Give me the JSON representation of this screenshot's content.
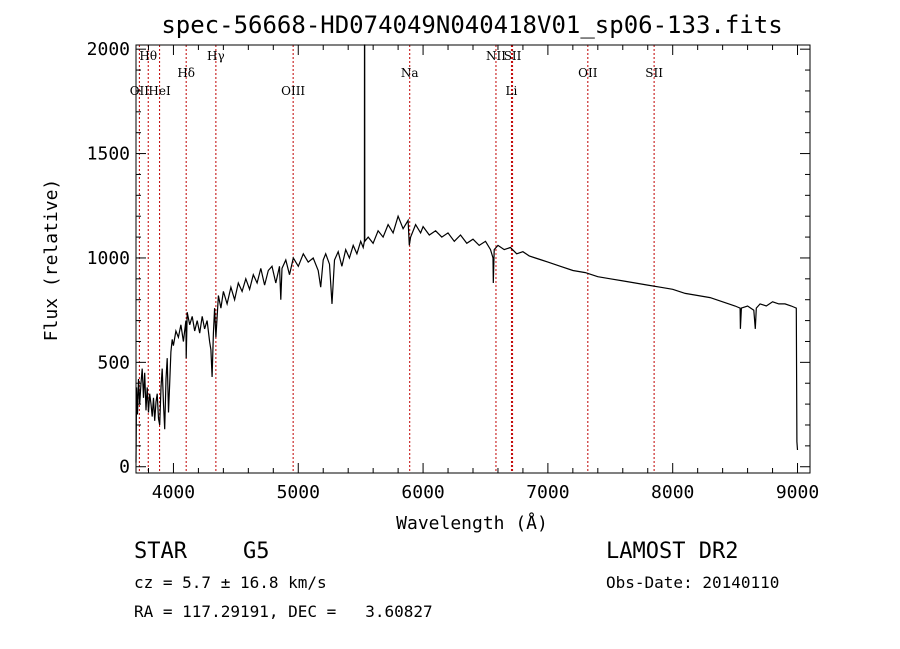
{
  "chart_data": {
    "type": "line",
    "title": "spec-56668-HD074049N040418V01_sp06-133.fits",
    "xlabel": "Wavelength (Å)",
    "ylabel": "Flux (relative)",
    "xlim": [
      3700,
      9100
    ],
    "ylim": [
      -30,
      2020
    ],
    "xticks": [
      4000,
      5000,
      6000,
      7000,
      8000,
      9000
    ],
    "yticks": [
      0,
      500,
      1000,
      1500,
      2000
    ],
    "xtick_labels": [
      "4000",
      "5000",
      "6000",
      "7000",
      "8000",
      "9000"
    ],
    "ytick_labels": [
      "0",
      "500",
      "1000",
      "1500",
      "2000"
    ],
    "grid": false,
    "series": [
      {
        "color": "#000000",
        "points": [
          [
            3700,
            20
          ],
          [
            3705,
            380
          ],
          [
            3712,
            250
          ],
          [
            3720,
            420
          ],
          [
            3730,
            300
          ],
          [
            3740,
            400
          ],
          [
            3750,
            470
          ],
          [
            3760,
            330
          ],
          [
            3770,
            450
          ],
          [
            3780,
            270
          ],
          [
            3790,
            380
          ],
          [
            3800,
            260
          ],
          [
            3810,
            350
          ],
          [
            3820,
            300
          ],
          [
            3830,
            240
          ],
          [
            3840,
            330
          ],
          [
            3850,
            220
          ],
          [
            3860,
            310
          ],
          [
            3870,
            350
          ],
          [
            3880,
            230
          ],
          [
            3890,
            200
          ],
          [
            3900,
            380
          ],
          [
            3910,
            470
          ],
          [
            3920,
            300
          ],
          [
            3930,
            180
          ],
          [
            3940,
            420
          ],
          [
            3950,
            520
          ],
          [
            3960,
            260
          ],
          [
            3970,
            400
          ],
          [
            3980,
            550
          ],
          [
            3990,
            610
          ],
          [
            4000,
            580
          ],
          [
            4020,
            650
          ],
          [
            4040,
            620
          ],
          [
            4060,
            680
          ],
          [
            4080,
            600
          ],
          [
            4100,
            700
          ],
          [
            4102,
            520
          ],
          [
            4110,
            740
          ],
          [
            4130,
            680
          ],
          [
            4150,
            720
          ],
          [
            4170,
            650
          ],
          [
            4190,
            700
          ],
          [
            4210,
            640
          ],
          [
            4230,
            720
          ],
          [
            4250,
            660
          ],
          [
            4270,
            700
          ],
          [
            4290,
            600
          ],
          [
            4300,
            560
          ],
          [
            4310,
            430
          ],
          [
            4320,
            640
          ],
          [
            4330,
            760
          ],
          [
            4340,
            620
          ],
          [
            4360,
            820
          ],
          [
            4380,
            760
          ],
          [
            4400,
            840
          ],
          [
            4430,
            780
          ],
          [
            4460,
            860
          ],
          [
            4490,
            800
          ],
          [
            4520,
            880
          ],
          [
            4550,
            840
          ],
          [
            4580,
            900
          ],
          [
            4610,
            850
          ],
          [
            4640,
            920
          ],
          [
            4670,
            880
          ],
          [
            4700,
            950
          ],
          [
            4730,
            870
          ],
          [
            4760,
            940
          ],
          [
            4790,
            960
          ],
          [
            4820,
            880
          ],
          [
            4850,
            960
          ],
          [
            4860,
            800
          ],
          [
            4870,
            950
          ],
          [
            4900,
            990
          ],
          [
            4930,
            920
          ],
          [
            4960,
            1000
          ],
          [
            5000,
            960
          ],
          [
            5040,
            1020
          ],
          [
            5080,
            980
          ],
          [
            5120,
            1000
          ],
          [
            5160,
            940
          ],
          [
            5180,
            860
          ],
          [
            5200,
            990
          ],
          [
            5220,
            1020
          ],
          [
            5250,
            970
          ],
          [
            5270,
            780
          ],
          [
            5290,
            990
          ],
          [
            5320,
            1030
          ],
          [
            5350,
            960
          ],
          [
            5380,
            1040
          ],
          [
            5410,
            1000
          ],
          [
            5440,
            1060
          ],
          [
            5470,
            1020
          ],
          [
            5500,
            1080
          ],
          [
            5520,
            1050
          ],
          [
            5530,
            1080
          ],
          [
            5531,
            2040
          ],
          [
            5532,
            2040
          ],
          [
            5533,
            1080
          ],
          [
            5560,
            1100
          ],
          [
            5600,
            1070
          ],
          [
            5640,
            1130
          ],
          [
            5680,
            1100
          ],
          [
            5720,
            1160
          ],
          [
            5760,
            1120
          ],
          [
            5800,
            1200
          ],
          [
            5840,
            1140
          ],
          [
            5880,
            1180
          ],
          [
            5890,
            1060
          ],
          [
            5900,
            1100
          ],
          [
            5940,
            1160
          ],
          [
            5980,
            1120
          ],
          [
            6000,
            1150
          ],
          [
            6050,
            1110
          ],
          [
            6100,
            1130
          ],
          [
            6150,
            1100
          ],
          [
            6200,
            1120
          ],
          [
            6250,
            1080
          ],
          [
            6300,
            1110
          ],
          [
            6350,
            1070
          ],
          [
            6400,
            1090
          ],
          [
            6450,
            1060
          ],
          [
            6500,
            1080
          ],
          [
            6540,
            1040
          ],
          [
            6560,
            1000
          ],
          [
            6563,
            880
          ],
          [
            6570,
            1040
          ],
          [
            6600,
            1060
          ],
          [
            6650,
            1040
          ],
          [
            6700,
            1050
          ],
          [
            6750,
            1020
          ],
          [
            6800,
            1030
          ],
          [
            6850,
            1010
          ],
          [
            6900,
            1000
          ],
          [
            6950,
            990
          ],
          [
            7000,
            980
          ],
          [
            7100,
            960
          ],
          [
            7200,
            940
          ],
          [
            7300,
            930
          ],
          [
            7400,
            910
          ],
          [
            7500,
            900
          ],
          [
            7600,
            890
          ],
          [
            7700,
            880
          ],
          [
            7800,
            870
          ],
          [
            7900,
            860
          ],
          [
            8000,
            850
          ],
          [
            8100,
            830
          ],
          [
            8200,
            820
          ],
          [
            8300,
            810
          ],
          [
            8400,
            790
          ],
          [
            8450,
            780
          ],
          [
            8500,
            770
          ],
          [
            8540,
            760
          ],
          [
            8542,
            660
          ],
          [
            8550,
            760
          ],
          [
            8600,
            770
          ],
          [
            8650,
            750
          ],
          [
            8662,
            660
          ],
          [
            8670,
            760
          ],
          [
            8700,
            780
          ],
          [
            8750,
            770
          ],
          [
            8800,
            790
          ],
          [
            8850,
            780
          ],
          [
            8900,
            780
          ],
          [
            8950,
            770
          ],
          [
            8990,
            760
          ],
          [
            8995,
            120
          ],
          [
            9000,
            80
          ]
        ]
      }
    ],
    "lines": [
      {
        "label": "Hθ",
        "x": 3798,
        "tier": 0
      },
      {
        "label": "OII",
        "x": 3727,
        "tier": 1
      },
      {
        "label": "HeI",
        "x": 3889,
        "tier": 1
      },
      {
        "label": "Hδ",
        "x": 4102,
        "tier": 2
      },
      {
        "label": "Hγ",
        "x": 4340,
        "tier": 0
      },
      {
        "label": "OIII",
        "x": 4959,
        "tier": 1
      },
      {
        "label": "Na",
        "x": 5893,
        "tier": 2
      },
      {
        "label": "NII",
        "x": 6584,
        "tier": 0
      },
      {
        "label": "SII",
        "x": 6717,
        "tier": 0
      },
      {
        "label": "Li",
        "x": 6708,
        "tier": 1
      },
      {
        "label": "OII",
        "x": 7320,
        "tier": 2
      },
      {
        "label": "SII",
        "x": 7851,
        "tier": 2
      }
    ]
  },
  "info": {
    "class": "STAR",
    "subclass": "G5",
    "survey": "LAMOST DR2",
    "cz": "cz = 5.7 ± 16.8 km/s",
    "obs_date": "Obs-Date: 20140110",
    "radec": "RA = 117.29191, DEC =   3.60827"
  }
}
